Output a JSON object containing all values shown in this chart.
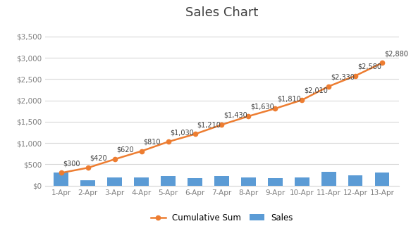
{
  "categories": [
    "1-Apr",
    "2-Apr",
    "3-Apr",
    "4-Apr",
    "5-Apr",
    "6-Apr",
    "7-Apr",
    "8-Apr",
    "9-Apr",
    "10-Apr",
    "11-Apr",
    "12-Apr",
    "13-Apr"
  ],
  "sales": [
    300,
    120,
    200,
    190,
    220,
    180,
    220,
    200,
    180,
    200,
    320,
    250,
    300
  ],
  "cumulative": [
    300,
    420,
    620,
    810,
    1030,
    1210,
    1430,
    1630,
    1810,
    2010,
    2330,
    2580,
    2880
  ],
  "cum_labels": [
    "$300",
    "$420",
    "$620",
    "$810",
    "$1,030",
    "$1,210",
    "$1,430",
    "$1,630",
    "$1,810",
    "$2,010",
    "$2,330",
    "$2,580",
    "$2,880"
  ],
  "bar_color": "#5B9BD5",
  "line_color": "#ED7D31",
  "marker_color": "#ED7D31",
  "title": "Sales Chart",
  "title_fontsize": 13,
  "ylabel_ticks": [
    0,
    500,
    1000,
    1500,
    2000,
    2500,
    3000,
    3500
  ],
  "ylim": [
    0,
    3800
  ],
  "background_color": "#FFFFFF",
  "grid_color": "#D9D9D9",
  "label_fontsize": 7,
  "legend_sales": "Sales",
  "legend_cumsum": "Cumulative Sum",
  "tick_label_color": "#7F7F7F",
  "title_color": "#404040",
  "border_color": "#D9D9D9"
}
